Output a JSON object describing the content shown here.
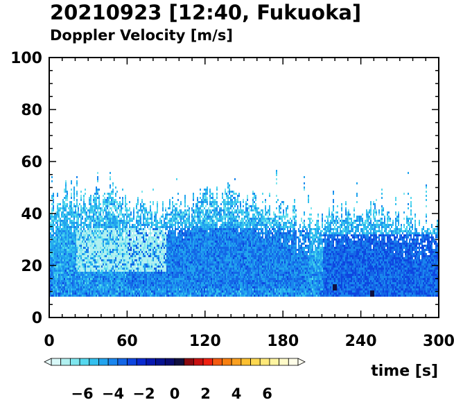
{
  "chart_data": {
    "type": "heatmap",
    "title": "20210923 [12:40, Fukuoka]",
    "subtitle": "Doppler Velocity [m/s]",
    "xlabel": "time [s]",
    "ylabel": "",
    "xlim": [
      0,
      300
    ],
    "ylim": [
      0,
      100
    ],
    "x_ticks": [
      "0",
      "60",
      "120",
      "180",
      "240",
      "300"
    ],
    "y_ticks": [
      "0",
      "20",
      "40",
      "60",
      "80",
      "100"
    ],
    "colorbar": {
      "range": [
        -8,
        8
      ],
      "tick_labels": [
        "−6",
        "−4",
        "−2",
        "0",
        "2",
        "4",
        "6"
      ],
      "tick_values": [
        -6,
        -4,
        -2,
        0,
        2,
        4,
        6
      ],
      "colors": [
        "#d8f8f8",
        "#b0f0f0",
        "#7ee6ee",
        "#55d8ee",
        "#33c0ee",
        "#22a4ee",
        "#1a86ee",
        "#1466e6",
        "#0e46e0",
        "#0a2ad0",
        "#0818b0",
        "#061290",
        "#0a0c70",
        "#101040",
        "#8a0a10",
        "#c81010",
        "#f02010",
        "#f45a10",
        "#f88010",
        "#faa020",
        "#fcc030",
        "#fdd850",
        "#fee878",
        "#fef4a0",
        "#fffac8",
        "#fffde8"
      ]
    },
    "field": {
      "description_values": "Doppler velocity mostly between -7 and -2 m/s; data present from ~8 m to ~55 m altitude",
      "lower_bound_height": 8,
      "typical_top_height": 40,
      "max_top_height": 58,
      "strong_negative_region": {
        "x": [
          60,
          200
        ],
        "y": [
          12,
          35
        ],
        "velocity": -3
      },
      "late_strong_region": {
        "x": [
          210,
          300
        ],
        "y": [
          8,
          32
        ],
        "velocity": -2.5
      },
      "weak_region": {
        "x": [
          20,
          90
        ],
        "y": [
          18,
          35
        ],
        "velocity": -6.5
      },
      "small_positive_spots": [
        {
          "x": 219,
          "y": 12,
          "velocity": 0.5
        },
        {
          "x": 248,
          "y": 9,
          "velocity": 0.4
        }
      ]
    }
  }
}
